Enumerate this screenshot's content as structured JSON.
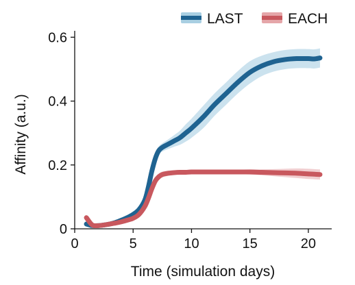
{
  "chart_data": {
    "type": "line",
    "xlabel": "Time (simulation days)",
    "ylabel": "Affinity (a.u.)",
    "xlim": [
      0,
      22
    ],
    "ylim": [
      0,
      0.62
    ],
    "xticks": [
      0,
      5,
      10,
      15,
      20
    ],
    "yticks": [
      0,
      0.2,
      0.4,
      0.6
    ],
    "ytick_labels": [
      "0",
      "0.2",
      "0.4",
      "0.6"
    ],
    "grid": false,
    "legend_position": "top-right",
    "series": [
      {
        "name": "LAST",
        "color": "#1f6391",
        "band_color": "#a9cfe2",
        "x": [
          1,
          1.5,
          2,
          2.5,
          3,
          3.5,
          4,
          4.5,
          5,
          5.5,
          6,
          6.3,
          6.6,
          6.9,
          7.2,
          7.5,
          8,
          8.5,
          9,
          9.5,
          10,
          11,
          12,
          13,
          14,
          15,
          16,
          17,
          18,
          19,
          20,
          20.5,
          21
        ],
        "values": [
          0.015,
          0.01,
          0.01,
          0.012,
          0.015,
          0.02,
          0.027,
          0.035,
          0.045,
          0.06,
          0.09,
          0.13,
          0.18,
          0.22,
          0.245,
          0.255,
          0.265,
          0.275,
          0.285,
          0.3,
          0.315,
          0.35,
          0.39,
          0.425,
          0.46,
          0.49,
          0.51,
          0.523,
          0.53,
          0.533,
          0.533,
          0.532,
          0.535
        ],
        "lower": [
          0.008,
          0.006,
          0.006,
          0.008,
          0.01,
          0.014,
          0.02,
          0.027,
          0.036,
          0.05,
          0.077,
          0.115,
          0.165,
          0.205,
          0.232,
          0.242,
          0.25,
          0.257,
          0.263,
          0.273,
          0.285,
          0.315,
          0.355,
          0.39,
          0.425,
          0.455,
          0.478,
          0.492,
          0.5,
          0.503,
          0.503,
          0.502,
          0.505
        ],
        "upper": [
          0.022,
          0.014,
          0.014,
          0.016,
          0.02,
          0.026,
          0.034,
          0.043,
          0.055,
          0.072,
          0.103,
          0.145,
          0.195,
          0.235,
          0.258,
          0.268,
          0.28,
          0.293,
          0.307,
          0.327,
          0.345,
          0.385,
          0.425,
          0.46,
          0.495,
          0.525,
          0.542,
          0.553,
          0.56,
          0.563,
          0.563,
          0.562,
          0.565
        ]
      },
      {
        "name": "EACH",
        "color": "#c8585e",
        "band_color": "#e5a6a9",
        "x": [
          1,
          1.5,
          2,
          2.5,
          3,
          3.5,
          4,
          4.5,
          5,
          5.5,
          6,
          6.3,
          6.6,
          6.9,
          7.2,
          7.5,
          8,
          8.5,
          9,
          9.5,
          10,
          11,
          12,
          13,
          14,
          15,
          16,
          17,
          18,
          19,
          20,
          20.5,
          21
        ],
        "values": [
          0.035,
          0.012,
          0.01,
          0.012,
          0.015,
          0.018,
          0.022,
          0.027,
          0.033,
          0.045,
          0.07,
          0.095,
          0.125,
          0.15,
          0.163,
          0.17,
          0.174,
          0.176,
          0.177,
          0.177,
          0.178,
          0.178,
          0.178,
          0.178,
          0.178,
          0.178,
          0.177,
          0.176,
          0.175,
          0.174,
          0.172,
          0.171,
          0.17
        ],
        "lower": [
          0.03,
          0.009,
          0.007,
          0.009,
          0.012,
          0.014,
          0.018,
          0.022,
          0.027,
          0.038,
          0.061,
          0.085,
          0.113,
          0.138,
          0.153,
          0.161,
          0.166,
          0.169,
          0.17,
          0.17,
          0.171,
          0.171,
          0.171,
          0.171,
          0.171,
          0.17,
          0.168,
          0.165,
          0.162,
          0.159,
          0.156,
          0.155,
          0.154
        ],
        "upper": [
          0.04,
          0.015,
          0.013,
          0.015,
          0.018,
          0.022,
          0.026,
          0.032,
          0.039,
          0.052,
          0.079,
          0.105,
          0.137,
          0.162,
          0.173,
          0.179,
          0.182,
          0.183,
          0.184,
          0.184,
          0.185,
          0.185,
          0.185,
          0.185,
          0.185,
          0.186,
          0.186,
          0.187,
          0.188,
          0.189,
          0.188,
          0.187,
          0.186
        ]
      }
    ]
  }
}
